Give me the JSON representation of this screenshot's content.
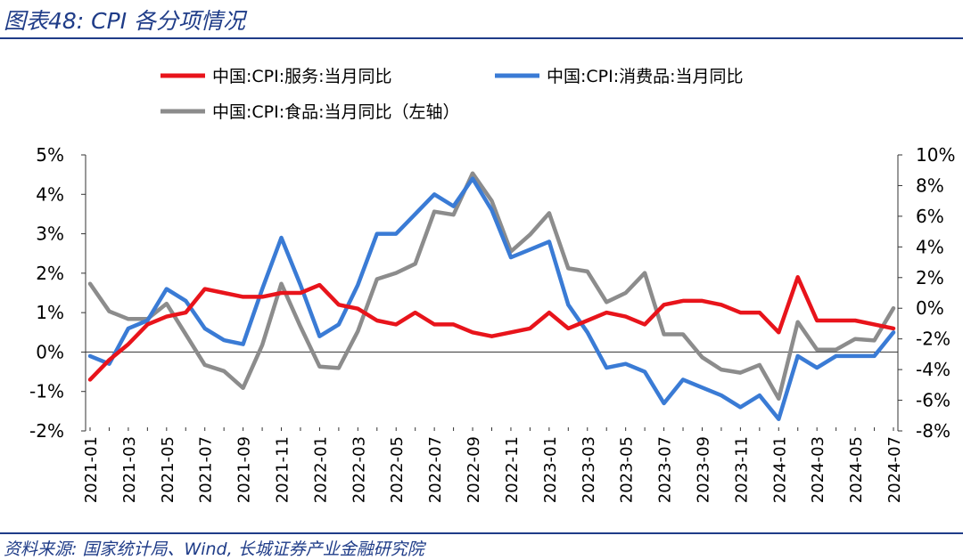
{
  "figure": {
    "title": "图表48:  CPI 各分项情况",
    "source": "资料来源:  国家统计局、Wind, 长城证券产业金融研究院"
  },
  "chart_data": {
    "type": "line",
    "title": "",
    "x": [
      "2021-01",
      "2021-02",
      "2021-03",
      "2021-04",
      "2021-05",
      "2021-06",
      "2021-07",
      "2021-08",
      "2021-09",
      "2021-10",
      "2021-11",
      "2021-12",
      "2022-01",
      "2022-02",
      "2022-03",
      "2022-04",
      "2022-05",
      "2022-06",
      "2022-07",
      "2022-08",
      "2022-09",
      "2022-10",
      "2022-11",
      "2022-12",
      "2023-01",
      "2023-02",
      "2023-03",
      "2023-04",
      "2023-05",
      "2023-06",
      "2023-07",
      "2023-08",
      "2023-09",
      "2023-10",
      "2023-11",
      "2023-12",
      "2024-01",
      "2024-02",
      "2024-03",
      "2024-04",
      "2024-05",
      "2024-06",
      "2024-07"
    ],
    "x_tick_labels": [
      "2021-01",
      "2021-03",
      "2021-05",
      "2021-07",
      "2021-09",
      "2021-11",
      "2022-01",
      "2022-03",
      "2022-05",
      "2022-07",
      "2022-09",
      "2022-11",
      "2023-01",
      "2023-03",
      "2023-05",
      "2023-07",
      "2023-09",
      "2023-11",
      "2024-01",
      "2024-03",
      "2024-05",
      "2024-07"
    ],
    "y_left": {
      "ylim": [
        -2,
        5
      ],
      "ticks": [
        "5%",
        "4%",
        "3%",
        "2%",
        "1%",
        "0%",
        "-1%",
        "-2%"
      ],
      "tick_values": [
        5,
        4,
        3,
        2,
        1,
        0,
        -1,
        -2
      ]
    },
    "y_right": {
      "ylim": [
        -8,
        10
      ],
      "ticks": [
        "10%",
        "8%",
        "6%",
        "4%",
        "2%",
        "0%",
        "-2%",
        "-4%",
        "-6%",
        "-8%"
      ],
      "tick_values": [
        10,
        8,
        6,
        4,
        2,
        0,
        -2,
        -4,
        -6,
        -8
      ]
    },
    "legend": {
      "placement": "top"
    },
    "grid": false,
    "series": [
      {
        "name": "中国:CPI:服务:当月同比",
        "color": "#e8141b",
        "axis": "left",
        "values": [
          -0.7,
          -0.2,
          0.2,
          0.7,
          0.9,
          1.0,
          1.6,
          1.5,
          1.4,
          1.4,
          1.5,
          1.5,
          1.7,
          1.2,
          1.1,
          0.8,
          0.7,
          1.0,
          0.7,
          0.7,
          0.5,
          0.4,
          0.5,
          0.6,
          1.0,
          0.6,
          0.8,
          1.0,
          0.9,
          0.7,
          1.2,
          1.3,
          1.3,
          1.2,
          1.0,
          1.0,
          0.5,
          1.9,
          0.8,
          0.8,
          0.8,
          0.7,
          0.6
        ]
      },
      {
        "name": "中国:CPI:消费品:当月同比",
        "color": "#3a7bd5",
        "axis": "left",
        "values": [
          -0.1,
          -0.3,
          0.6,
          0.8,
          1.6,
          1.3,
          0.6,
          0.3,
          0.2,
          1.6,
          2.9,
          1.7,
          0.4,
          0.7,
          1.7,
          3.0,
          3.0,
          3.5,
          4.0,
          3.7,
          4.4,
          3.6,
          2.4,
          2.6,
          2.8,
          1.2,
          0.5,
          -0.4,
          -0.3,
          -0.5,
          -1.3,
          -0.7,
          -0.9,
          -1.1,
          -1.4,
          -1.1,
          -1.7,
          -0.1,
          -0.4,
          -0.1,
          -0.1,
          -0.1,
          0.5
        ]
      },
      {
        "name": "中国:CPI:食品:当月同比（左轴）",
        "color": "#8c8c8c",
        "axis": "right",
        "values": [
          1.6,
          -0.2,
          -0.7,
          -0.7,
          0.3,
          -1.7,
          -3.7,
          -4.1,
          -5.2,
          -2.4,
          1.6,
          -1.2,
          -3.8,
          -3.9,
          -1.5,
          1.9,
          2.3,
          2.9,
          6.3,
          6.1,
          8.8,
          7.0,
          3.7,
          4.8,
          6.2,
          2.6,
          2.4,
          0.4,
          1.0,
          2.3,
          -1.7,
          -1.7,
          -3.2,
          -4.0,
          -4.2,
          -3.7,
          -5.9,
          -0.9,
          -2.7,
          -2.7,
          -2.0,
          -2.1,
          0.0
        ]
      }
    ]
  }
}
